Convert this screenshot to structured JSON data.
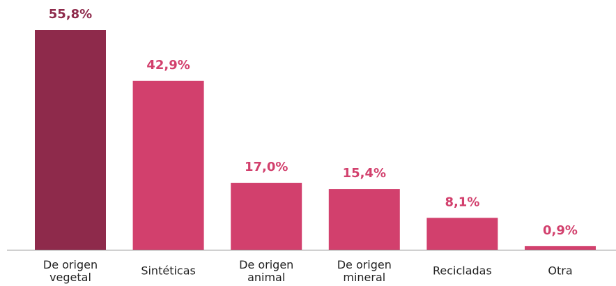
{
  "chart_data": {
    "type": "bar",
    "categories": [
      "De origen\nvegetal",
      "Sintéticas",
      "De origen\nanimal",
      "De origen\nmineral",
      "Recicladas",
      "Otra"
    ],
    "values": [
      55.8,
      42.9,
      17.0,
      15.4,
      8.1,
      0.9
    ],
    "value_labels": [
      "55,8%",
      "42,9%",
      "17,0%",
      "15,4%",
      "8,1%",
      "0,9%"
    ],
    "colors": [
      "#8e2a4b",
      "#d2406d",
      "#d2406d",
      "#d2406d",
      "#d2406d",
      "#d2406d"
    ]
  }
}
